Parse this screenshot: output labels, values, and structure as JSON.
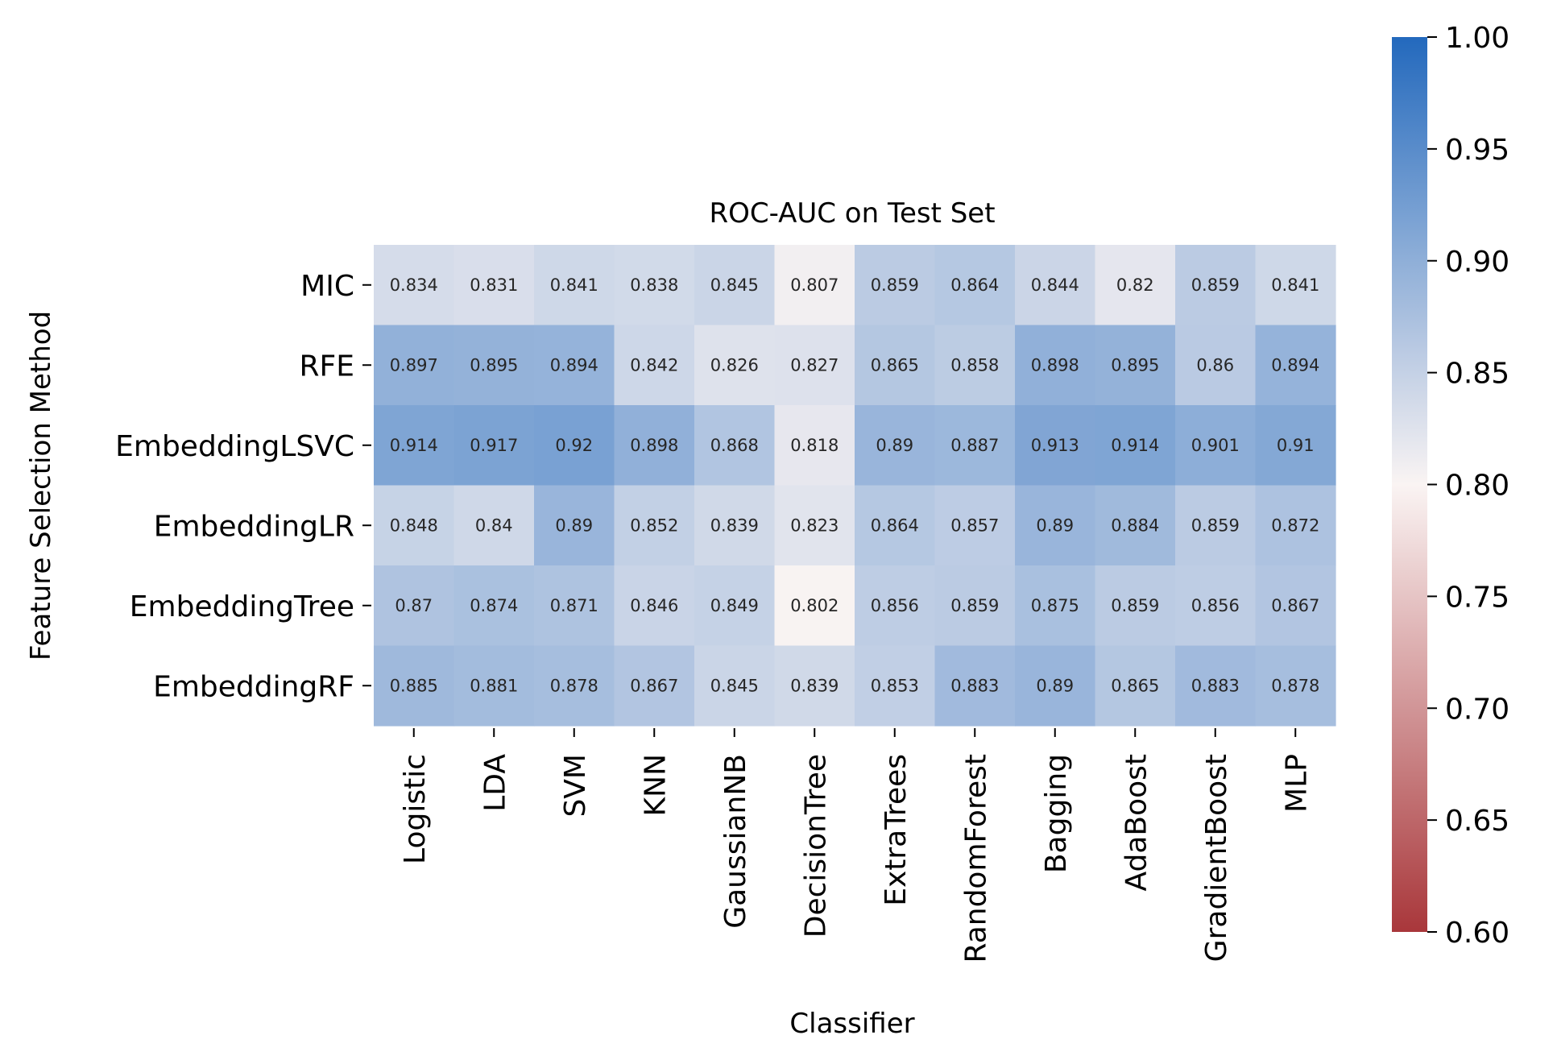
{
  "chart_data": {
    "type": "heatmap",
    "title": "ROC-AUC on Test Set",
    "xlabel": "Classifier",
    "ylabel": "Feature Selection Method",
    "columns": [
      "Logistic",
      "LDA",
      "SVM",
      "KNN",
      "GaussianNB",
      "DecisionTree",
      "ExtraTrees",
      "RandomForest",
      "Bagging",
      "AdaBoost",
      "GradientBoost",
      "MLP"
    ],
    "rows": [
      {
        "name": "MIC",
        "values": [
          0.834,
          0.831,
          0.841,
          0.838,
          0.845,
          0.807,
          0.859,
          0.864,
          0.844,
          0.82,
          0.859,
          0.841
        ]
      },
      {
        "name": "RFE",
        "values": [
          0.897,
          0.895,
          0.894,
          0.842,
          0.826,
          0.827,
          0.865,
          0.858,
          0.898,
          0.895,
          0.86,
          0.894
        ]
      },
      {
        "name": "EmbeddingLSVC",
        "values": [
          0.914,
          0.917,
          0.92,
          0.898,
          0.868,
          0.818,
          0.89,
          0.887,
          0.913,
          0.914,
          0.901,
          0.91
        ]
      },
      {
        "name": "EmbeddingLR",
        "values": [
          0.848,
          0.84,
          0.89,
          0.852,
          0.839,
          0.823,
          0.864,
          0.857,
          0.89,
          0.884,
          0.859,
          0.872
        ]
      },
      {
        "name": "EmbeddingTree",
        "values": [
          0.87,
          0.874,
          0.871,
          0.846,
          0.849,
          0.802,
          0.856,
          0.859,
          0.875,
          0.859,
          0.856,
          0.867
        ]
      },
      {
        "name": "EmbeddingRF",
        "values": [
          0.885,
          0.881,
          0.878,
          0.867,
          0.845,
          0.839,
          0.853,
          0.883,
          0.89,
          0.865,
          0.883,
          0.878
        ]
      }
    ],
    "colorbar": {
      "range": [
        0.6,
        1.0
      ],
      "ticks": [
        "0.60",
        "0.65",
        "0.70",
        "0.75",
        "0.80",
        "0.85",
        "0.90",
        "0.95",
        "1.00"
      ],
      "colormap": "vlag",
      "low_color": "#a9373b",
      "mid_color": "#faf4f3",
      "high_color": "#2369bd"
    },
    "grid": false,
    "annotations": true
  }
}
